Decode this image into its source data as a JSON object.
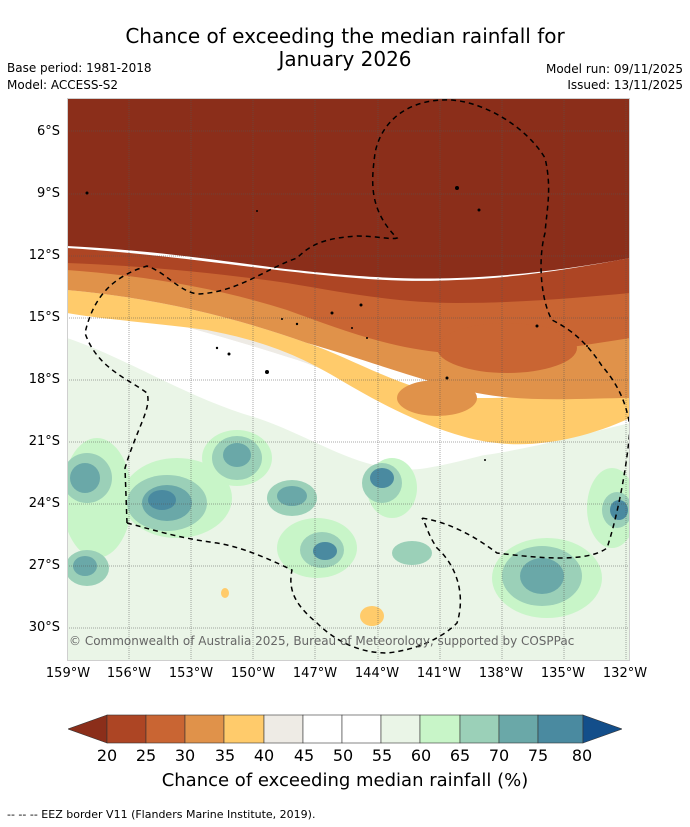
{
  "header": {
    "title_line1": "Chance of exceeding the median rainfall for",
    "title_line2": "January 2026",
    "base_period": "Base period: 1981-2018",
    "model": "Model: ACCESS-S2",
    "model_run": "Model run: 09/11/2025",
    "issued": "Issued: 13/11/2025"
  },
  "map": {
    "credit": "© Commonwealth of Australia 2025, Bureau of Meteorology, supported by COSPPac",
    "lat_labels": [
      "6°S",
      "9°S",
      "12°S",
      "15°S",
      "18°S",
      "21°S",
      "24°S",
      "27°S",
      "30°S"
    ],
    "lon_labels": [
      "159°W",
      "156°W",
      "153°W",
      "150°W",
      "147°W",
      "144°W",
      "141°W",
      "138°W",
      "135°W",
      "132°W"
    ]
  },
  "colorbar": {
    "ticks": [
      "20",
      "25",
      "30",
      "35",
      "40",
      "45",
      "50",
      "55",
      "60",
      "65",
      "70",
      "75",
      "80"
    ],
    "colors": [
      "#8b2e1a",
      "#ad4524",
      "#c96533",
      "#e0924a",
      "#ffcb6b",
      "#eeebe5",
      "#ffffff",
      "#ffffff",
      "#eaf5e7",
      "#c8f5c8",
      "#9bd0b8",
      "#6aa8a8",
      "#4a8aa0",
      "#134e8a"
    ],
    "title": "Chance of exceeding median rainfall (%)"
  },
  "footer": {
    "eez_note": "--  --  -- EEZ border V11 (Flanders Marine Institute, 2019)."
  }
}
